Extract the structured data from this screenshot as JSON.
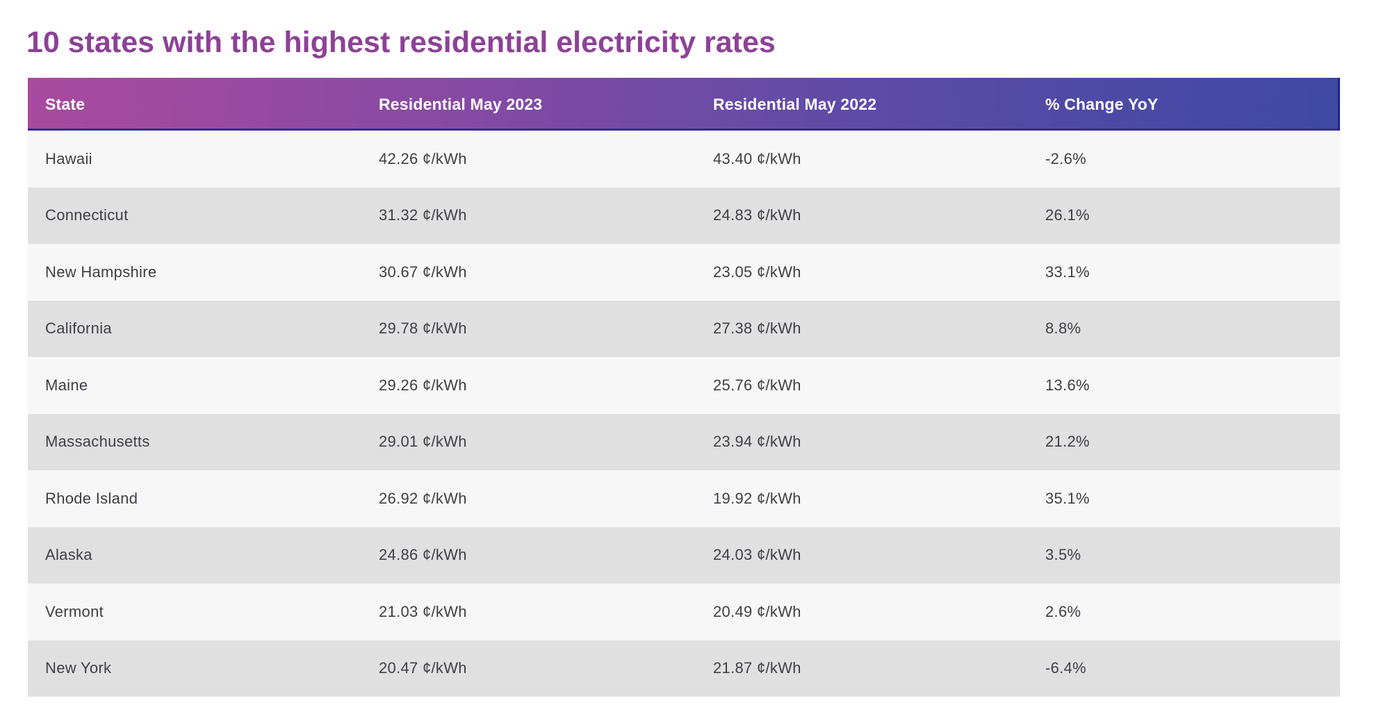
{
  "page": {
    "title": "10 states with the highest residential electricity rates"
  },
  "colors": {
    "title": "#8d4197",
    "header_gradient_left": "#a84a9f",
    "header_gradient_right": "#3d49a4",
    "header_text": "#ffffff",
    "row_light": "#f7f7f7",
    "row_dark": "#e0e0e0",
    "row_text": "#3e3e46"
  },
  "table": {
    "columns": {
      "state": "State",
      "may2023": "Residential May 2023",
      "may2022": "Residential May 2022",
      "change": "% Change YoY"
    },
    "rows": [
      {
        "state": "Hawaii",
        "may2023": "42.26 ¢/kWh",
        "may2022": "43.40 ¢/kWh",
        "change": "-2.6%"
      },
      {
        "state": "Connecticut",
        "may2023": "31.32 ¢/kWh",
        "may2022": "24.83 ¢/kWh",
        "change": "26.1%"
      },
      {
        "state": "New Hampshire",
        "may2023": "30.67 ¢/kWh",
        "may2022": "23.05 ¢/kWh",
        "change": "33.1%"
      },
      {
        "state": "California",
        "may2023": "29.78 ¢/kWh",
        "may2022": "27.38 ¢/kWh",
        "change": "8.8%"
      },
      {
        "state": "Maine",
        "may2023": "29.26 ¢/kWh",
        "may2022": "25.76 ¢/kWh",
        "change": "13.6%"
      },
      {
        "state": "Massachusetts",
        "may2023": "29.01 ¢/kWh",
        "may2022": "23.94 ¢/kWh",
        "change": "21.2%"
      },
      {
        "state": "Rhode Island",
        "may2023": "26.92 ¢/kWh",
        "may2022": "19.92 ¢/kWh",
        "change": "35.1%"
      },
      {
        "state": "Alaska",
        "may2023": "24.86 ¢/kWh",
        "may2022": "24.03 ¢/kWh",
        "change": "3.5%"
      },
      {
        "state": "Vermont",
        "may2023": "21.03 ¢/kWh",
        "may2022": "20.49 ¢/kWh",
        "change": "2.6%"
      },
      {
        "state": "New York",
        "may2023": "20.47 ¢/kWh",
        "may2022": "21.87 ¢/kWh",
        "change": "-6.4%"
      }
    ]
  },
  "chart_data": {
    "type": "table",
    "title": "10 states with the highest residential electricity rates",
    "columns": [
      "State",
      "Residential May 2023",
      "Residential May 2022",
      "% Change YoY"
    ],
    "unit": "¢/kWh",
    "rows": [
      [
        "Hawaii",
        42.26,
        43.4,
        "-2.6%"
      ],
      [
        "Connecticut",
        31.32,
        24.83,
        "26.1%"
      ],
      [
        "New Hampshire",
        30.67,
        23.05,
        "33.1%"
      ],
      [
        "California",
        29.78,
        27.38,
        "8.8%"
      ],
      [
        "Maine",
        29.26,
        25.76,
        "13.6%"
      ],
      [
        "Massachusetts",
        29.01,
        23.94,
        "21.2%"
      ],
      [
        "Rhode Island",
        26.92,
        19.92,
        "35.1%"
      ],
      [
        "Alaska",
        24.86,
        24.03,
        "3.5%"
      ],
      [
        "Vermont",
        21.03,
        20.49,
        "2.6%"
      ],
      [
        "New York",
        20.47,
        21.87,
        "-6.4%"
      ]
    ]
  }
}
